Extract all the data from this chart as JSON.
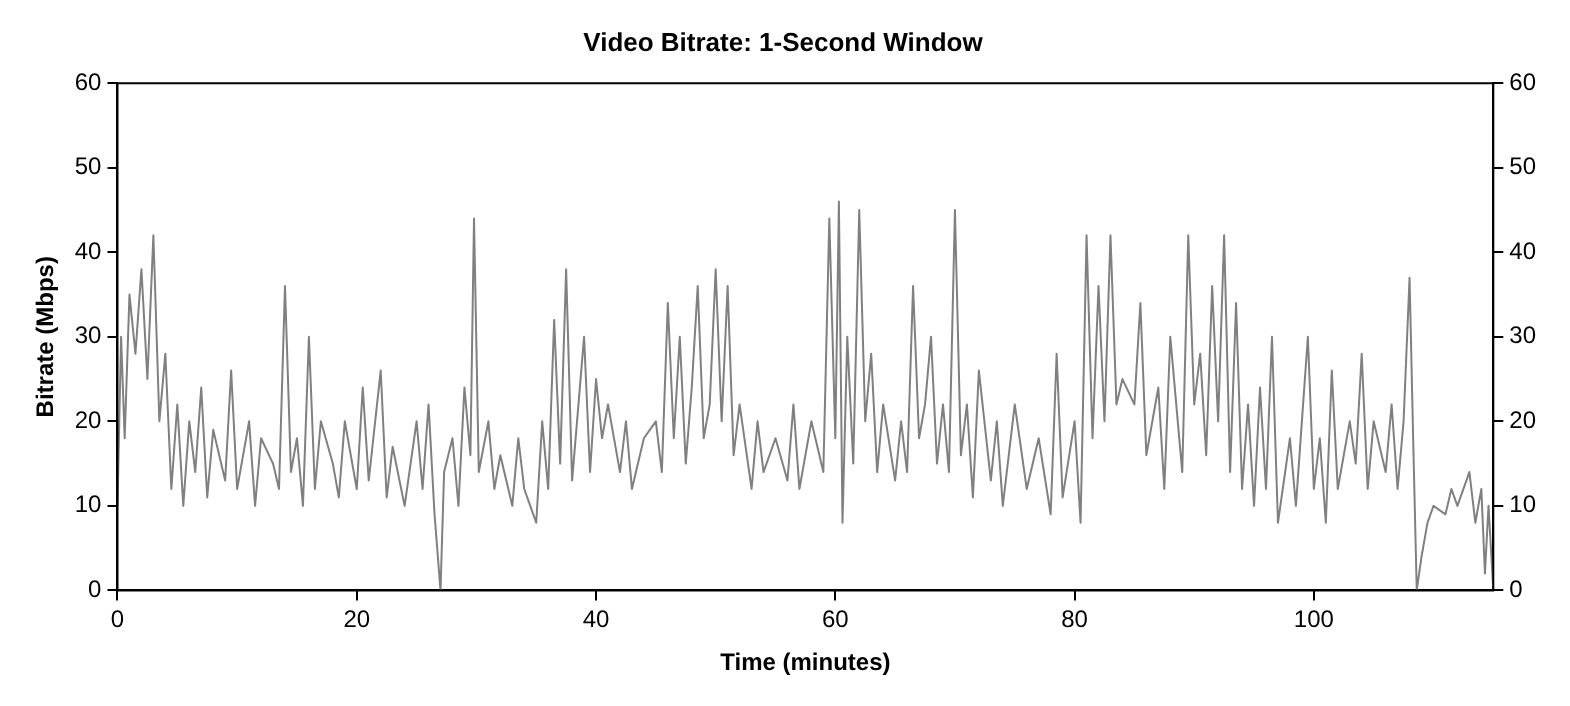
{
  "chart_data": {
    "type": "line",
    "title": "Video Bitrate: 1-Second Window",
    "xlabel": "Time (minutes)",
    "ylabel": "Bitrate (Mbps)",
    "xlim": [
      0,
      115
    ],
    "xticks": [
      0,
      20,
      40,
      60,
      80,
      100
    ],
    "ylim": [
      0,
      60
    ],
    "yticks": [
      0,
      10,
      20,
      30,
      40,
      50,
      60
    ],
    "y2lim": [
      0,
      60
    ],
    "y2ticks": [
      0,
      10,
      20,
      30,
      40,
      50,
      60
    ],
    "grid": false,
    "legend": false,
    "marker": "none",
    "line_style": "solid",
    "series": [
      {
        "color": "#808080",
        "x": [
          0,
          0.3,
          0.6,
          1,
          1.5,
          2,
          2.5,
          3,
          3.5,
          4,
          4.5,
          5,
          5.5,
          6,
          6.5,
          7,
          7.5,
          8,
          9,
          9.5,
          10,
          11,
          11.5,
          12,
          13,
          13.5,
          14,
          14.5,
          15,
          15.5,
          16,
          16.5,
          17,
          18,
          18.5,
          19,
          20,
          20.5,
          21,
          22,
          22.5,
          23,
          24,
          25,
          25.5,
          26,
          26.5,
          27,
          27.3,
          28,
          28.5,
          29,
          29.5,
          29.8,
          30.2,
          31,
          31.5,
          32,
          33,
          33.5,
          34,
          35,
          35.5,
          36,
          36.5,
          37,
          37.5,
          38,
          39,
          39.5,
          40,
          40.5,
          41,
          42,
          42.5,
          43,
          44,
          45,
          45.5,
          46,
          46.5,
          47,
          47.5,
          48,
          48.5,
          49,
          49.5,
          50,
          50.5,
          51,
          51.5,
          52,
          53,
          53.5,
          54,
          55,
          56,
          56.5,
          57,
          58,
          59,
          59.5,
          60,
          60.3,
          60.6,
          61,
          61.5,
          62,
          62.5,
          63,
          63.5,
          64,
          65,
          65.5,
          66,
          66.5,
          67,
          67.5,
          68,
          68.5,
          69,
          69.5,
          70,
          70.5,
          71,
          71.5,
          72,
          73,
          73.5,
          74,
          75,
          76,
          77,
          78,
          78.5,
          79,
          80,
          80.5,
          81,
          81.5,
          82,
          82.5,
          83,
          83.5,
          84,
          85,
          85.5,
          86,
          87,
          87.5,
          88,
          89,
          89.5,
          90,
          90.5,
          91,
          91.5,
          92,
          92.5,
          93,
          93.5,
          94,
          94.5,
          95,
          95.5,
          96,
          96.5,
          97,
          98,
          98.5,
          99,
          99.5,
          100,
          100.5,
          101,
          101.5,
          102,
          103,
          103.5,
          104,
          104.5,
          105,
          106,
          106.5,
          107,
          107.5,
          108,
          108.3,
          108.6,
          109,
          109.5,
          110,
          111,
          111.5,
          112,
          113,
          113.5,
          114,
          114.3,
          114.6,
          115
        ],
        "values": [
          10,
          30,
          18,
          35,
          28,
          38,
          25,
          42,
          20,
          28,
          12,
          22,
          10,
          20,
          14,
          24,
          11,
          19,
          13,
          26,
          12,
          20,
          10,
          18,
          15,
          12,
          36,
          14,
          18,
          10,
          30,
          12,
          20,
          15,
          11,
          20,
          12,
          24,
          13,
          26,
          11,
          17,
          10,
          20,
          12,
          22,
          9,
          0,
          14,
          18,
          10,
          24,
          16,
          44,
          14,
          20,
          12,
          16,
          10,
          18,
          12,
          8,
          20,
          12,
          32,
          15,
          38,
          13,
          30,
          14,
          25,
          18,
          22,
          14,
          20,
          12,
          18,
          20,
          14,
          34,
          18,
          30,
          15,
          24,
          36,
          18,
          22,
          38,
          20,
          36,
          16,
          22,
          12,
          20,
          14,
          18,
          13,
          22,
          12,
          20,
          14,
          44,
          18,
          46,
          8,
          30,
          15,
          45,
          20,
          28,
          14,
          22,
          13,
          20,
          14,
          36,
          18,
          22,
          30,
          15,
          22,
          14,
          45,
          16,
          22,
          11,
          26,
          13,
          20,
          10,
          22,
          12,
          18,
          9,
          28,
          11,
          20,
          8,
          42,
          18,
          36,
          20,
          42,
          22,
          25,
          22,
          34,
          16,
          24,
          12,
          30,
          14,
          42,
          22,
          28,
          16,
          36,
          20,
          42,
          14,
          34,
          12,
          22,
          10,
          24,
          12,
          30,
          8,
          18,
          10,
          20,
          30,
          12,
          18,
          8,
          26,
          12,
          20,
          15,
          28,
          12,
          20,
          14,
          22,
          12,
          20,
          37,
          18,
          0,
          4,
          8,
          10,
          9,
          12,
          10,
          14,
          8,
          12,
          2,
          10,
          0
        ]
      }
    ]
  }
}
